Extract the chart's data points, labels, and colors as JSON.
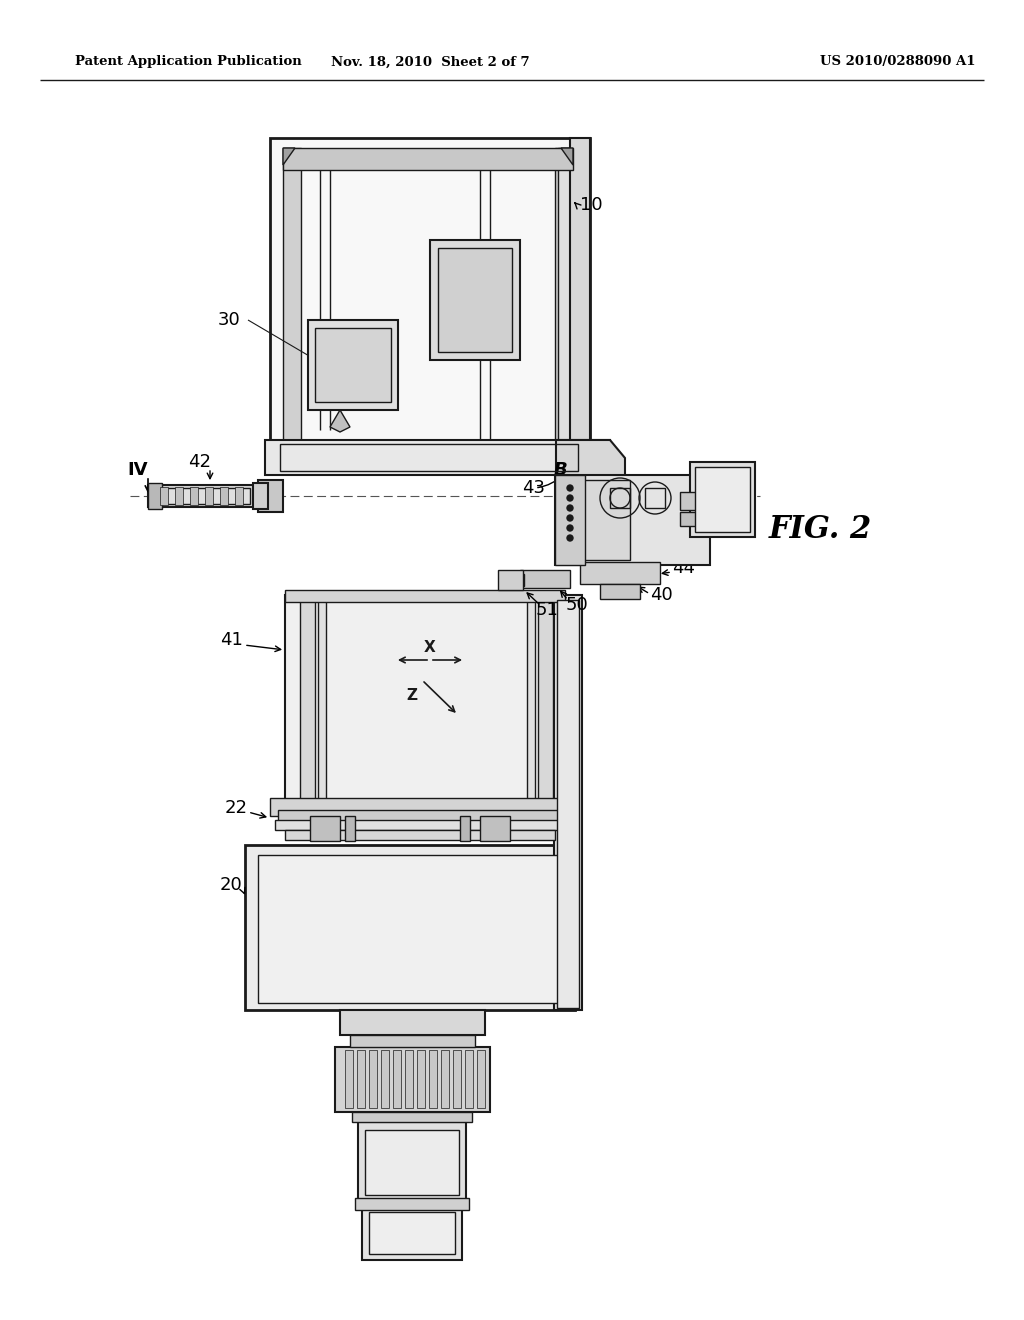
{
  "header_left": "Patent Application Publication",
  "header_mid": "Nov. 18, 2010  Sheet 2 of 7",
  "header_right": "US 2010/0288090 A1",
  "fig_label": "FIG. 2",
  "background_color": "#ffffff",
  "line_color": "#1a1a1a"
}
